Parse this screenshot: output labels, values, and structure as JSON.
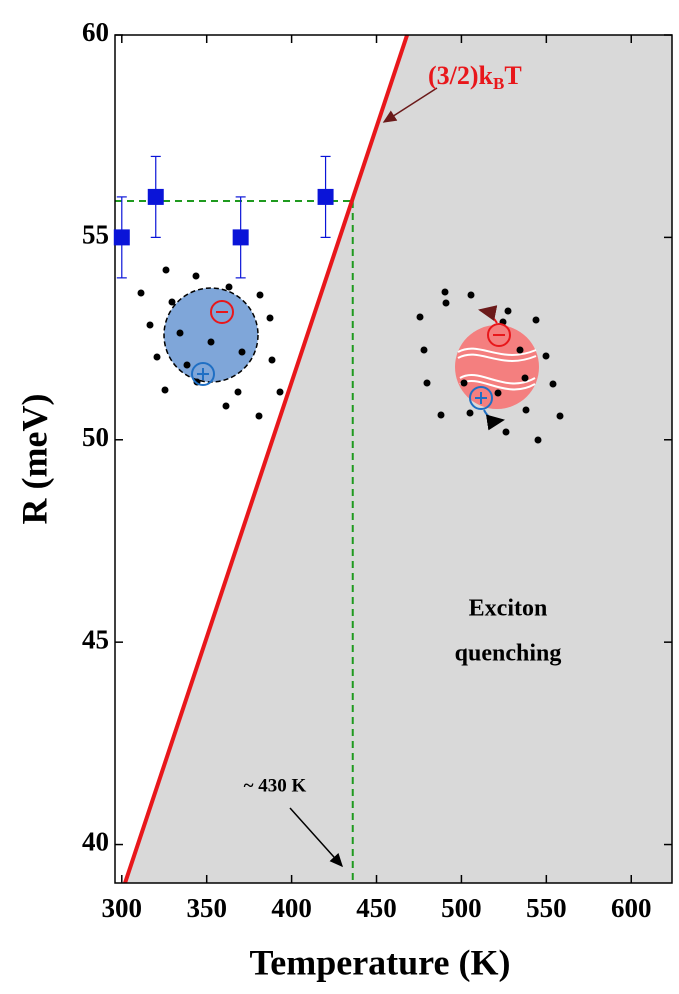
{
  "chart_data": {
    "type": "scatter",
    "x_label": "Temperature (K)",
    "y_label": "R (meV)",
    "xlim": [
      296,
      624
    ],
    "ylim": [
      39.05,
      60
    ],
    "xticks": [
      300,
      350,
      400,
      450,
      500,
      550,
      600
    ],
    "yticks": [
      40,
      45,
      50,
      55,
      60
    ],
    "series": [
      {
        "name": "R",
        "color": "#0a14d8",
        "x": [
          300,
          320,
          370,
          420
        ],
        "values": [
          55,
          56,
          55,
          56
        ],
        "errors": [
          1,
          1,
          1,
          1
        ]
      }
    ],
    "thermal_line": {
      "color": "#e8171b",
      "x": [
        300,
        468
      ],
      "values": [
        38.81,
        60.0
      ],
      "label_parts": [
        "(3/2)k",
        "B",
        "T"
      ]
    },
    "threshold": {
      "color": "#1f9a1f",
      "x": 436,
      "y": 55.9,
      "label": "~ 430 K"
    },
    "region": {
      "color": "#d9d9d9",
      "label_lines": [
        "Exciton",
        "quenching"
      ]
    }
  }
}
